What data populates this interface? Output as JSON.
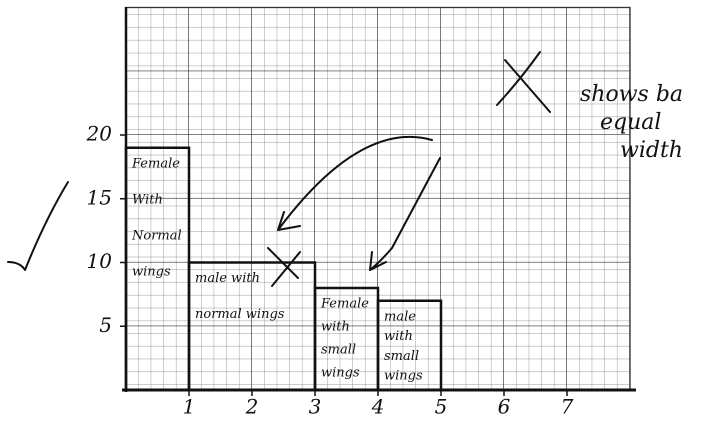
{
  "chart_data": {
    "type": "histogram",
    "bins": [
      0,
      1,
      3,
      4,
      5
    ],
    "values": [
      19,
      10,
      8,
      7
    ],
    "bar_labels": [
      [
        "Female",
        "With",
        "Normal",
        "wings"
      ],
      [
        "male with",
        "normal wings"
      ],
      [
        "Female",
        "with",
        "small",
        "wings"
      ],
      [
        "male",
        "with",
        "small",
        "wings"
      ]
    ],
    "xlim": [
      0,
      8
    ],
    "ylim": [
      0,
      30
    ],
    "xticks": [
      1,
      2,
      3,
      4,
      5,
      6,
      7
    ],
    "yticks": [
      5,
      10,
      15,
      20
    ],
    "annotation": [
      "shows ba",
      "equal",
      "width"
    ],
    "color": "none"
  }
}
